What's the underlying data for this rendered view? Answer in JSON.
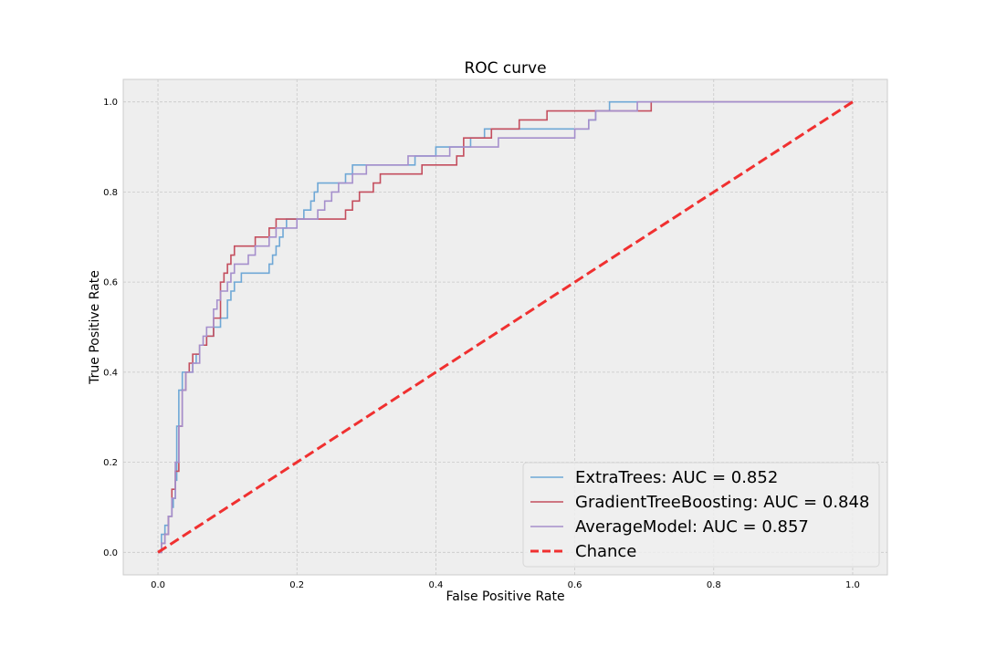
{
  "chart_data": {
    "type": "line",
    "title": "ROC curve",
    "xlabel": "False Positive Rate",
    "ylabel": "True Positive Rate",
    "xlim": [
      -0.05,
      1.05
    ],
    "ylim": [
      -0.05,
      1.05
    ],
    "xticks": [
      0.0,
      0.2,
      0.4,
      0.6,
      0.8,
      1.0
    ],
    "yticks": [
      0.0,
      0.2,
      0.4,
      0.6,
      0.8,
      1.0
    ],
    "xtick_labels": [
      "0.0",
      "0.2",
      "0.4",
      "0.6",
      "0.8",
      "1.0"
    ],
    "ytick_labels": [
      "0.0",
      "0.2",
      "0.4",
      "0.6",
      "0.8",
      "1.0"
    ],
    "grid": true,
    "legend_position": "lower-right",
    "series": [
      {
        "name": "ExtraTrees: AUC = 0.852",
        "color": "#6fa8d6",
        "style": "step",
        "x": [
          0.0,
          0.005,
          0.01,
          0.015,
          0.02,
          0.022,
          0.025,
          0.027,
          0.03,
          0.035,
          0.04,
          0.05,
          0.055,
          0.06,
          0.07,
          0.075,
          0.08,
          0.09,
          0.1,
          0.105,
          0.11,
          0.12,
          0.125,
          0.13,
          0.16,
          0.165,
          0.17,
          0.175,
          0.18,
          0.185,
          0.21,
          0.22,
          0.225,
          0.23,
          0.24,
          0.27,
          0.28,
          0.31,
          0.33,
          0.37,
          0.4,
          0.45,
          0.47,
          0.51,
          0.58,
          0.62,
          0.63,
          0.65,
          0.66,
          0.7,
          0.8,
          1.0
        ],
        "y": [
          0.0,
          0.04,
          0.06,
          0.08,
          0.1,
          0.12,
          0.16,
          0.28,
          0.36,
          0.4,
          0.4,
          0.42,
          0.44,
          0.46,
          0.48,
          0.48,
          0.5,
          0.52,
          0.56,
          0.58,
          0.6,
          0.62,
          0.62,
          0.62,
          0.64,
          0.66,
          0.68,
          0.7,
          0.72,
          0.74,
          0.76,
          0.78,
          0.8,
          0.82,
          0.82,
          0.84,
          0.86,
          0.86,
          0.86,
          0.88,
          0.9,
          0.92,
          0.94,
          0.94,
          0.94,
          0.96,
          0.98,
          1.0,
          1.0,
          1.0,
          1.0,
          1.0
        ]
      },
      {
        "name": "GradientTreeBoosting: AUC = 0.848",
        "color": "#c44e5e",
        "style": "step",
        "x": [
          0.0,
          0.005,
          0.01,
          0.015,
          0.02,
          0.025,
          0.03,
          0.035,
          0.04,
          0.045,
          0.05,
          0.06,
          0.07,
          0.08,
          0.09,
          0.095,
          0.1,
          0.105,
          0.11,
          0.13,
          0.14,
          0.15,
          0.16,
          0.17,
          0.21,
          0.23,
          0.27,
          0.28,
          0.29,
          0.31,
          0.32,
          0.38,
          0.43,
          0.44,
          0.48,
          0.52,
          0.56,
          0.58,
          0.63,
          0.71,
          0.72,
          0.8,
          1.0
        ],
        "y": [
          0.0,
          0.02,
          0.04,
          0.08,
          0.14,
          0.18,
          0.28,
          0.36,
          0.4,
          0.42,
          0.44,
          0.46,
          0.48,
          0.52,
          0.6,
          0.62,
          0.64,
          0.66,
          0.68,
          0.68,
          0.7,
          0.7,
          0.72,
          0.74,
          0.74,
          0.74,
          0.76,
          0.78,
          0.8,
          0.82,
          0.84,
          0.86,
          0.88,
          0.92,
          0.94,
          0.96,
          0.98,
          0.98,
          0.98,
          1.0,
          1.0,
          1.0,
          1.0
        ]
      },
      {
        "name": "AverageModel: AUC = 0.857",
        "color": "#a58fcc",
        "style": "step",
        "x": [
          0.0,
          0.005,
          0.01,
          0.015,
          0.02,
          0.025,
          0.03,
          0.035,
          0.04,
          0.045,
          0.05,
          0.06,
          0.065,
          0.07,
          0.08,
          0.085,
          0.09,
          0.1,
          0.105,
          0.11,
          0.12,
          0.13,
          0.14,
          0.15,
          0.16,
          0.17,
          0.2,
          0.22,
          0.23,
          0.24,
          0.25,
          0.26,
          0.28,
          0.3,
          0.32,
          0.33,
          0.36,
          0.4,
          0.42,
          0.46,
          0.49,
          0.6,
          0.62,
          0.63,
          0.69,
          0.8,
          1.0
        ],
        "y": [
          0.0,
          0.02,
          0.04,
          0.08,
          0.12,
          0.2,
          0.28,
          0.36,
          0.4,
          0.4,
          0.42,
          0.46,
          0.48,
          0.5,
          0.54,
          0.56,
          0.58,
          0.6,
          0.62,
          0.64,
          0.64,
          0.66,
          0.68,
          0.68,
          0.7,
          0.72,
          0.74,
          0.74,
          0.76,
          0.78,
          0.8,
          0.82,
          0.84,
          0.86,
          0.86,
          0.86,
          0.88,
          0.88,
          0.9,
          0.9,
          0.92,
          0.94,
          0.96,
          0.98,
          1.0,
          1.0,
          1.0
        ]
      },
      {
        "name": "Chance",
        "color": "#f03030",
        "style": "dashed",
        "x": [
          0.0,
          1.0
        ],
        "y": [
          0.0,
          1.0
        ]
      }
    ]
  }
}
